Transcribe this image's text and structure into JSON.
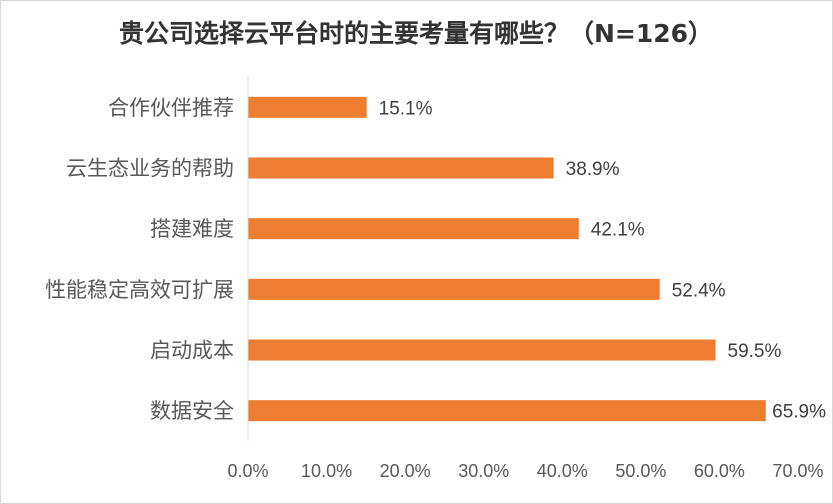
{
  "chart_data": {
    "type": "bar",
    "orientation": "horizontal",
    "title": "贵公司选择云平台时的主要考量有哪些？（N=126）",
    "categories": [
      "合作伙伴推荐",
      "云生态业务的帮助",
      "搭建难度",
      "性能稳定高效可扩展",
      "启动成本",
      "数据安全"
    ],
    "values": [
      15.1,
      38.9,
      42.1,
      52.4,
      59.5,
      65.9
    ],
    "data_labels": [
      "15.1%",
      "38.9%",
      "42.1%",
      "52.4%",
      "59.5%",
      "65.9%"
    ],
    "xlim": [
      0,
      70
    ],
    "x_tick_values": [
      0,
      10,
      20,
      30,
      40,
      50,
      60,
      70
    ],
    "x_tick_labels": [
      "0.0%",
      "10.0%",
      "20.0%",
      "30.0%",
      "40.0%",
      "50.0%",
      "60.0%",
      "70.0%"
    ],
    "bar_color": "#ED7D31",
    "grid": false
  }
}
